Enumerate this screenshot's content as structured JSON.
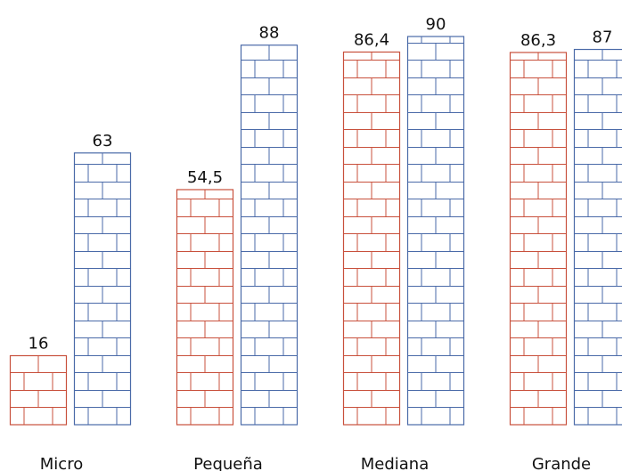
{
  "chart_data": {
    "type": "bar",
    "categories": [
      "Micro",
      "Pequeña",
      "Mediana",
      "Grande"
    ],
    "series": [
      {
        "color": "#c8503c",
        "values": [
          16,
          54.5,
          86.4,
          86.3
        ],
        "value_labels": [
          "16",
          "54,5",
          "86,4",
          "86,3"
        ]
      },
      {
        "color": "#4a6aa8",
        "values": [
          63,
          88,
          90,
          87
        ],
        "value_labels": [
          "63",
          "88",
          "90",
          "87"
        ]
      }
    ],
    "ylim": [
      0,
      90
    ]
  }
}
